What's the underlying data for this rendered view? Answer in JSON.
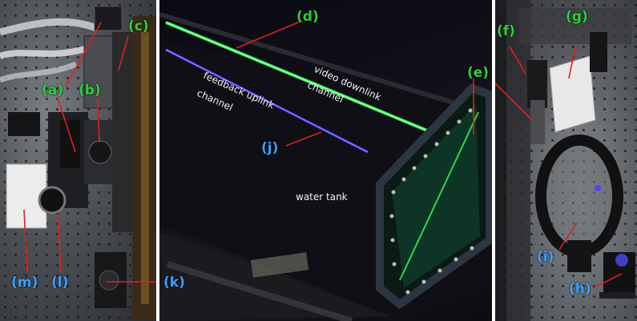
{
  "labels": {
    "a": "(a)",
    "b": "(b)",
    "c": "(c)",
    "d": "(d)",
    "e": "(e)",
    "f": "(f)",
    "g": "(g)",
    "h": "(h)",
    "i": "(i)",
    "j": "(j)",
    "k": "(k)",
    "l": "(l)",
    "m": "(m)"
  },
  "captions": {
    "video_downlink_1": "video downlink",
    "video_downlink_2": "channel",
    "feedback_uplink_1": "feedback uplink",
    "feedback_uplink_2": "channel",
    "water_tank": "water tank"
  },
  "colors": {
    "label_green": "#2fcf3a",
    "label_blue": "#3aa0ff",
    "arrow_red": "#e02020",
    "green_beam": "#39ff5a",
    "blue_beam": "#4b3cff"
  }
}
